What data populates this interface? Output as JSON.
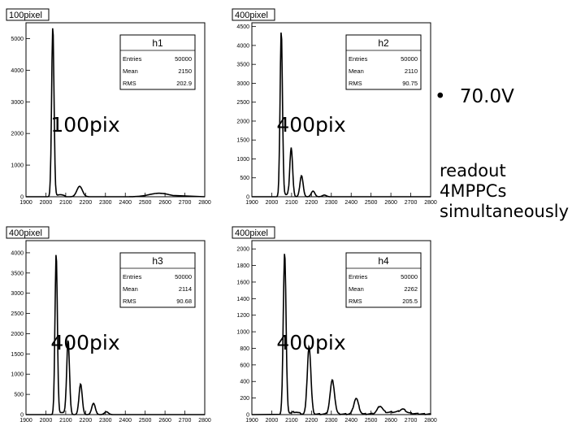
{
  "bullet": {
    "marker": "•",
    "text": "70.0V"
  },
  "note": [
    "readout",
    "4MPPCs",
    "simultaneously"
  ],
  "chart_data": [
    {
      "type": "line",
      "tag": "100pixel",
      "big_label": "100pix",
      "title": "h1",
      "stats": [
        {
          "k": "Entries",
          "v": "50000"
        },
        {
          "k": "Mean",
          "v": "2150"
        },
        {
          "k": "RMS",
          "v": "202.9"
        }
      ],
      "xlim": [
        1900,
        2800
      ],
      "ylim": [
        0,
        5500
      ],
      "xticks": [
        "1900",
        "2000",
        "2100",
        "2200",
        "2300",
        "2400",
        "2500",
        "2600",
        "2700",
        "2800"
      ],
      "yticks": [
        0,
        1000,
        2000,
        3000,
        4000,
        5000
      ],
      "peaks": [
        [
          2035,
          5400,
          6
        ],
        [
          2170,
          330,
          14
        ]
      ],
      "shoulder": [
        2035,
        2045,
        2100,
        5
      ],
      "tail": [
        [
          2570,
          110,
          50
        ]
      ],
      "end": 2640
    },
    {
      "type": "line",
      "tag": "400pixel",
      "big_label": "400pix",
      "title": "h2",
      "stats": [
        {
          "k": "Entries",
          "v": "50000"
        },
        {
          "k": "Mean",
          "v": "2110"
        },
        {
          "k": "RMS",
          "v": "90.75"
        }
      ],
      "xlim": [
        1900,
        2800
      ],
      "ylim": [
        0,
        4600
      ],
      "xticks": [
        "1900",
        "2000",
        "2100",
        "2200",
        "2300",
        "2400",
        "2500",
        "2600",
        "2700",
        "2800"
      ],
      "yticks": [
        0,
        500,
        1000,
        1500,
        2000,
        2500,
        3000,
        3500,
        4000,
        4500
      ],
      "peaks": [
        [
          2048,
          4400,
          6
        ],
        [
          2098,
          1300,
          7
        ],
        [
          2150,
          560,
          8
        ],
        [
          2208,
          150,
          9
        ],
        [
          2265,
          45,
          10
        ]
      ],
      "shoulder": [
        2048,
        2055,
        2085,
        5
      ],
      "tail": [],
      "end": 2420
    },
    {
      "type": "line",
      "tag": "400pixel",
      "big_label": "400pix",
      "title": "h3",
      "stats": [
        {
          "k": "Entries",
          "v": "50000"
        },
        {
          "k": "Mean",
          "v": "2114"
        },
        {
          "k": "RMS",
          "v": "90.68"
        }
      ],
      "xlim": [
        1900,
        2800
      ],
      "ylim": [
        0,
        4300
      ],
      "xticks": [
        "1900",
        "2000",
        "2100",
        "2200",
        "2300",
        "2400",
        "2500",
        "2600",
        "2700",
        "2800"
      ],
      "yticks": [
        0,
        500,
        1000,
        1500,
        2000,
        2500,
        3000,
        3500,
        4000
      ],
      "peaks": [
        [
          2052,
          4000,
          6
        ],
        [
          2112,
          1850,
          7
        ],
        [
          2175,
          760,
          8
        ],
        [
          2240,
          280,
          9
        ],
        [
          2305,
          70,
          10
        ]
      ],
      "shoulder": [
        2052,
        2060,
        2105,
        5
      ],
      "tail": [],
      "end": 2450
    },
    {
      "type": "line",
      "tag": "400pixel",
      "big_label": "400pix",
      "title": "h4",
      "stats": [
        {
          "k": "Entries",
          "v": "50000"
        },
        {
          "k": "Mean",
          "v": "2262"
        },
        {
          "k": "RMS",
          "v": "205.5"
        }
      ],
      "xlim": [
        1900,
        2800
      ],
      "ylim": [
        0,
        2100
      ],
      "xticks": [
        "1900",
        "2000",
        "2100",
        "2200",
        "2300",
        "2400",
        "2500",
        "2600",
        "2700",
        "2800"
      ],
      "yticks": [
        0,
        200,
        400,
        600,
        800,
        1000,
        1200,
        1400,
        1600,
        1800,
        2000
      ],
      "peaks": [
        [
          2065,
          1960,
          7
        ],
        [
          2188,
          820,
          9
        ],
        [
          2305,
          410,
          11
        ],
        [
          2425,
          190,
          12
        ],
        [
          2545,
          85,
          13
        ],
        [
          2660,
          40,
          14
        ]
      ],
      "shoulder": [
        2065,
        2075,
        2150,
        6
      ],
      "tail": [
        [
          2620,
          25,
          60
        ]
      ],
      "end": 2800,
      "noise": true
    }
  ]
}
